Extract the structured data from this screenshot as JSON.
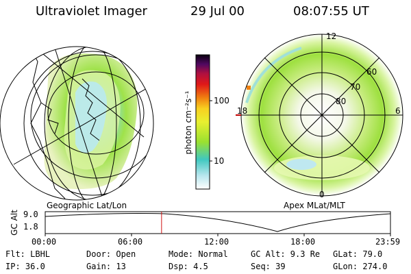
{
  "header": {
    "title": "Ultraviolet Imager",
    "date": "29 Jul 00",
    "time": "08:07:55 UT"
  },
  "colorbar": {
    "unit_label": "photon cm⁻²s⁻¹",
    "tick_100": "100",
    "tick_10": "10"
  },
  "left_panel": {
    "caption": "Geographic Lat/Lon"
  },
  "polar_panel": {
    "caption": "Apex MLat/MLT",
    "mlt_12": "12",
    "mlt_18": "18",
    "mlt_6": "6",
    "mlt_0": "0",
    "lat_60": "60",
    "lat_70": "70",
    "lat_80": "80"
  },
  "timeline": {
    "axis_label": "GC Alt",
    "y_top": "9.0",
    "y_bottom": "1.8",
    "ticks": [
      "00:00",
      "06:00",
      "12:00",
      "18:00",
      "23:59"
    ],
    "current_marker_fraction": 0.337
  },
  "status": {
    "flt": "Flt: LBHL",
    "ip": "IP: 36.0",
    "door": "Door: Open",
    "gain": "Gain: 13",
    "mode": "Mode: Normal",
    "dsp": "Dsp:     4.5",
    "gc_alt": "GC Alt: 9.3 Re",
    "seq": "Seq: 39",
    "glat": "GLat:  79.0",
    "glon": "GLon: 274.0"
  }
}
